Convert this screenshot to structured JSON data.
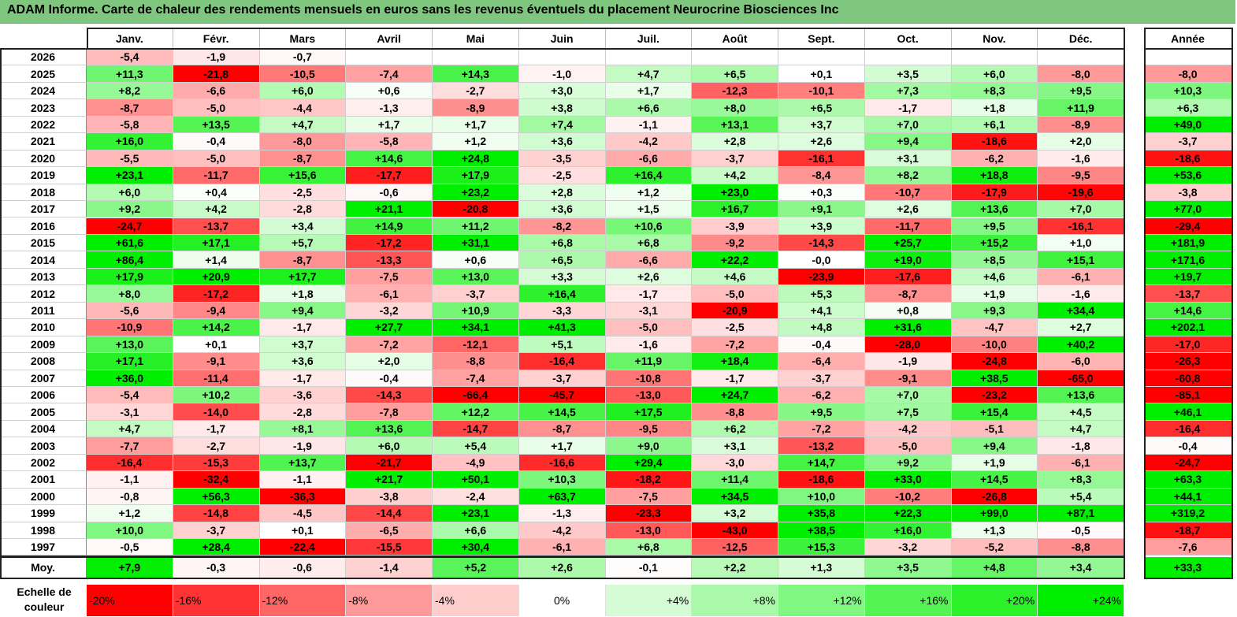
{
  "title": "ADAM Informe. Carte de chaleur des rendements mensuels en euros sans les revenus éventuels du placement Neurocrine Biosciences Inc",
  "chart_data": {
    "type": "heatmap",
    "title": "ADAM Informe. Carte de chaleur des rendements mensuels en euros sans les revenus éventuels du placement Neurocrine Biosciences Inc",
    "months": [
      "Janv.",
      "Févr.",
      "Mars",
      "Avril",
      "Mai",
      "Juin",
      "Juil.",
      "Août",
      "Sept.",
      "Oct.",
      "Nov.",
      "Déc."
    ],
    "year_header": "Année",
    "rows": [
      {
        "year": "2026",
        "months": [
          "-5,4",
          "-1,9",
          "-0,7",
          "",
          "",
          "",
          "",
          "",
          "",
          "",
          "",
          ""
        ],
        "annual": ""
      },
      {
        "year": "2025",
        "months": [
          "+11,3",
          "-21,8",
          "-10,5",
          "-7,4",
          "+14,3",
          "-1,0",
          "+4,7",
          "+6,5",
          "+0,1",
          "+3,5",
          "+6,0",
          "-8,0"
        ],
        "annual": "-8,0"
      },
      {
        "year": "2024",
        "months": [
          "+8,2",
          "-6,6",
          "+6,0",
          "+0,6",
          "-2,7",
          "+3,0",
          "+1,7",
          "-12,3",
          "-10,1",
          "+7,3",
          "+8,3",
          "+9,5"
        ],
        "annual": "+10,3"
      },
      {
        "year": "2023",
        "months": [
          "-8,7",
          "-5,0",
          "-4,4",
          "-1,3",
          "-8,9",
          "+3,8",
          "+6,6",
          "+8,0",
          "+6,5",
          "-1,7",
          "+1,8",
          "+11,9"
        ],
        "annual": "+6,3"
      },
      {
        "year": "2022",
        "months": [
          "-5,8",
          "+13,5",
          "+4,7",
          "+1,7",
          "+1,7",
          "+7,4",
          "-1,1",
          "+13,1",
          "+3,7",
          "+7,0",
          "+6,1",
          "-8,9"
        ],
        "annual": "+49,0"
      },
      {
        "year": "2021",
        "months": [
          "+16,0",
          "-0,4",
          "-8,0",
          "-5,8",
          "+1,2",
          "+3,6",
          "-4,2",
          "+2,8",
          "+2,6",
          "+9,4",
          "-18,6",
          "+2,0"
        ],
        "annual": "-3,7"
      },
      {
        "year": "2020",
        "months": [
          "-5,5",
          "-5,0",
          "-8,7",
          "+14,6",
          "+24,8",
          "-3,5",
          "-6,6",
          "-3,7",
          "-16,1",
          "+3,1",
          "-6,2",
          "-1,6"
        ],
        "annual": "-18,6"
      },
      {
        "year": "2019",
        "months": [
          "+23,1",
          "-11,7",
          "+15,6",
          "-17,7",
          "+17,9",
          "-2,5",
          "+16,4",
          "+4,2",
          "-8,4",
          "+8,2",
          "+18,8",
          "-9,5"
        ],
        "annual": "+53,6"
      },
      {
        "year": "2018",
        "months": [
          "+6,0",
          "+0,4",
          "-2,5",
          "-0,6",
          "+23,2",
          "+2,8",
          "+1,2",
          "+23,0",
          "+0,3",
          "-10,7",
          "-17,9",
          "-19,6"
        ],
        "annual": "-3,8"
      },
      {
        "year": "2017",
        "months": [
          "+9,2",
          "+4,2",
          "-2,8",
          "+21,1",
          "-20,8",
          "+3,6",
          "+1,5",
          "+16,7",
          "+9,1",
          "+2,6",
          "+13,6",
          "+7,0"
        ],
        "annual": "+77,0"
      },
      {
        "year": "2016",
        "months": [
          "-24,7",
          "-13,7",
          "+3,4",
          "+14,9",
          "+11,2",
          "-8,2",
          "+10,6",
          "-3,9",
          "+3,9",
          "-11,7",
          "+9,5",
          "-16,1"
        ],
        "annual": "-29,4"
      },
      {
        "year": "2015",
        "months": [
          "+61,6",
          "+17,1",
          "+5,7",
          "-17,2",
          "+31,1",
          "+6,8",
          "+6,8",
          "-9,2",
          "-14,3",
          "+25,7",
          "+15,2",
          "+1,0"
        ],
        "annual": "+181,9"
      },
      {
        "year": "2014",
        "months": [
          "+86,4",
          "+1,4",
          "-8,7",
          "-13,3",
          "+0,6",
          "+6,5",
          "-6,6",
          "+22,2",
          "-0,0",
          "+19,0",
          "+8,5",
          "+15,1"
        ],
        "annual": "+171,6"
      },
      {
        "year": "2013",
        "months": [
          "+17,9",
          "+20,9",
          "+17,7",
          "-7,5",
          "+13,0",
          "+3,3",
          "+2,6",
          "+4,6",
          "-23,9",
          "-17,6",
          "+4,6",
          "-6,1"
        ],
        "annual": "+19,7"
      },
      {
        "year": "2012",
        "months": [
          "+8,0",
          "-17,2",
          "+1,8",
          "-6,1",
          "-3,7",
          "+16,4",
          "-1,7",
          "-5,0",
          "+5,3",
          "-8,7",
          "+1,9",
          "-1,6"
        ],
        "annual": "-13,7"
      },
      {
        "year": "2011",
        "months": [
          "-5,6",
          "-9,4",
          "+9,4",
          "-3,2",
          "+10,9",
          "-3,3",
          "-3,1",
          "-20,9",
          "+4,1",
          "+0,8",
          "+9,3",
          "+34,4"
        ],
        "annual": "+14,6"
      },
      {
        "year": "2010",
        "months": [
          "-10,9",
          "+14,2",
          "-1,7",
          "+27,7",
          "+34,1",
          "+41,3",
          "-5,0",
          "-2,5",
          "+4,8",
          "+31,6",
          "-4,7",
          "+2,7"
        ],
        "annual": "+202,1"
      },
      {
        "year": "2009",
        "months": [
          "+13,0",
          "+0,1",
          "+3,7",
          "-7,2",
          "-12,1",
          "+5,1",
          "-1,6",
          "-7,2",
          "-0,4",
          "-28,0",
          "-10,0",
          "+40,2"
        ],
        "annual": "-17,0"
      },
      {
        "year": "2008",
        "months": [
          "+17,1",
          "-9,1",
          "+3,6",
          "+2,0",
          "-8,8",
          "-16,4",
          "+11,9",
          "+18,4",
          "-6,4",
          "-1,9",
          "-24,8",
          "-6,0"
        ],
        "annual": "-26,3"
      },
      {
        "year": "2007",
        "months": [
          "+36,0",
          "-11,4",
          "-1,7",
          "-0,4",
          "-7,4",
          "-3,7",
          "-10,8",
          "-1,7",
          "-3,7",
          "-9,1",
          "+38,5",
          "-65,0"
        ],
        "annual": "-60,8"
      },
      {
        "year": "2006",
        "months": [
          "-5,4",
          "+10,2",
          "-3,6",
          "-14,3",
          "-66,4",
          "-45,7",
          "-13,0",
          "+24,7",
          "-6,2",
          "+7,0",
          "-23,2",
          "+13,6"
        ],
        "annual": "-85,1"
      },
      {
        "year": "2005",
        "months": [
          "-3,1",
          "-14,0",
          "-2,8",
          "-7,8",
          "+12,2",
          "+14,5",
          "+17,5",
          "-8,8",
          "+9,5",
          "+7,5",
          "+15,4",
          "+4,5"
        ],
        "annual": "+46,1"
      },
      {
        "year": "2004",
        "months": [
          "+4,7",
          "-1,7",
          "+8,1",
          "+13,6",
          "-14,7",
          "-8,7",
          "-9,5",
          "+6,2",
          "-7,2",
          "-4,2",
          "-5,1",
          "+4,7"
        ],
        "annual": "-16,4"
      },
      {
        "year": "2003",
        "months": [
          "-7,7",
          "-2,7",
          "-1,9",
          "+6,0",
          "+5,4",
          "+1,7",
          "+9,0",
          "+3,1",
          "-13,2",
          "-5,0",
          "+9,4",
          "-1,8"
        ],
        "annual": "-0,4"
      },
      {
        "year": "2002",
        "months": [
          "-16,4",
          "-15,3",
          "+13,7",
          "-21,7",
          "-4,9",
          "-16,6",
          "+29,4",
          "-3,0",
          "+14,7",
          "+9,2",
          "+1,9",
          "-6,1"
        ],
        "annual": "-24,7"
      },
      {
        "year": "2001",
        "months": [
          "-1,1",
          "-32,4",
          "-1,1",
          "+21,7",
          "+50,1",
          "+10,3",
          "-18,2",
          "+11,4",
          "-18,6",
          "+33,0",
          "+14,5",
          "+8,3"
        ],
        "annual": "+63,3"
      },
      {
        "year": "2000",
        "months": [
          "-0,8",
          "+56,3",
          "-36,3",
          "-3,8",
          "-2,4",
          "+63,7",
          "-7,5",
          "+34,5",
          "+10,0",
          "-10,2",
          "-26,8",
          "+5,4"
        ],
        "annual": "+44,1"
      },
      {
        "year": "1999",
        "months": [
          "+1,2",
          "-14,8",
          "-4,5",
          "-14,4",
          "+23,1",
          "-1,3",
          "-23,3",
          "+3,2",
          "+35,8",
          "+22,3",
          "+99,0",
          "+87,1"
        ],
        "annual": "+319,2"
      },
      {
        "year": "1998",
        "months": [
          "+10,0",
          "-3,7",
          "+0,1",
          "-6,5",
          "+6,6",
          "-4,2",
          "-13,0",
          "-43,0",
          "+38,5",
          "+16,0",
          "+1,3",
          "-0,5"
        ],
        "annual": "-18,7"
      },
      {
        "year": "1997",
        "months": [
          "-0,5",
          "+28,4",
          "-22,4",
          "-15,5",
          "+30,4",
          "-6,1",
          "+6,8",
          "-12,5",
          "+15,3",
          "-3,2",
          "-5,2",
          "-8,8"
        ],
        "annual": "-7,6"
      }
    ],
    "average": {
      "label": "Moy.",
      "months": [
        "+7,9",
        "-0,3",
        "-0,6",
        "-1,4",
        "+5,2",
        "+2,6",
        "-0,1",
        "+2,2",
        "+1,3",
        "+3,5",
        "+4,8",
        "+3,4"
      ],
      "annual": "+33,3"
    },
    "scale": {
      "label": "Echelle de couleur",
      "steps": [
        {
          "label": "-20%",
          "value": -20
        },
        {
          "label": "-16%",
          "value": -16
        },
        {
          "label": "-12%",
          "value": -12
        },
        {
          "label": "-8%",
          "value": -8
        },
        {
          "label": "-4%",
          "value": -4
        },
        {
          "label": "0%",
          "value": 0
        },
        {
          "label": "+4%",
          "value": 4
        },
        {
          "label": "+8%",
          "value": 8
        },
        {
          "label": "+12%",
          "value": 12
        },
        {
          "label": "+16%",
          "value": 16
        },
        {
          "label": "+20%",
          "value": 20
        },
        {
          "label": "+24%",
          "value": 24
        }
      ]
    },
    "colors": {
      "negative_max": "#ff0000",
      "neutral": "#ffffff",
      "positive_max": "#00ee00"
    }
  }
}
